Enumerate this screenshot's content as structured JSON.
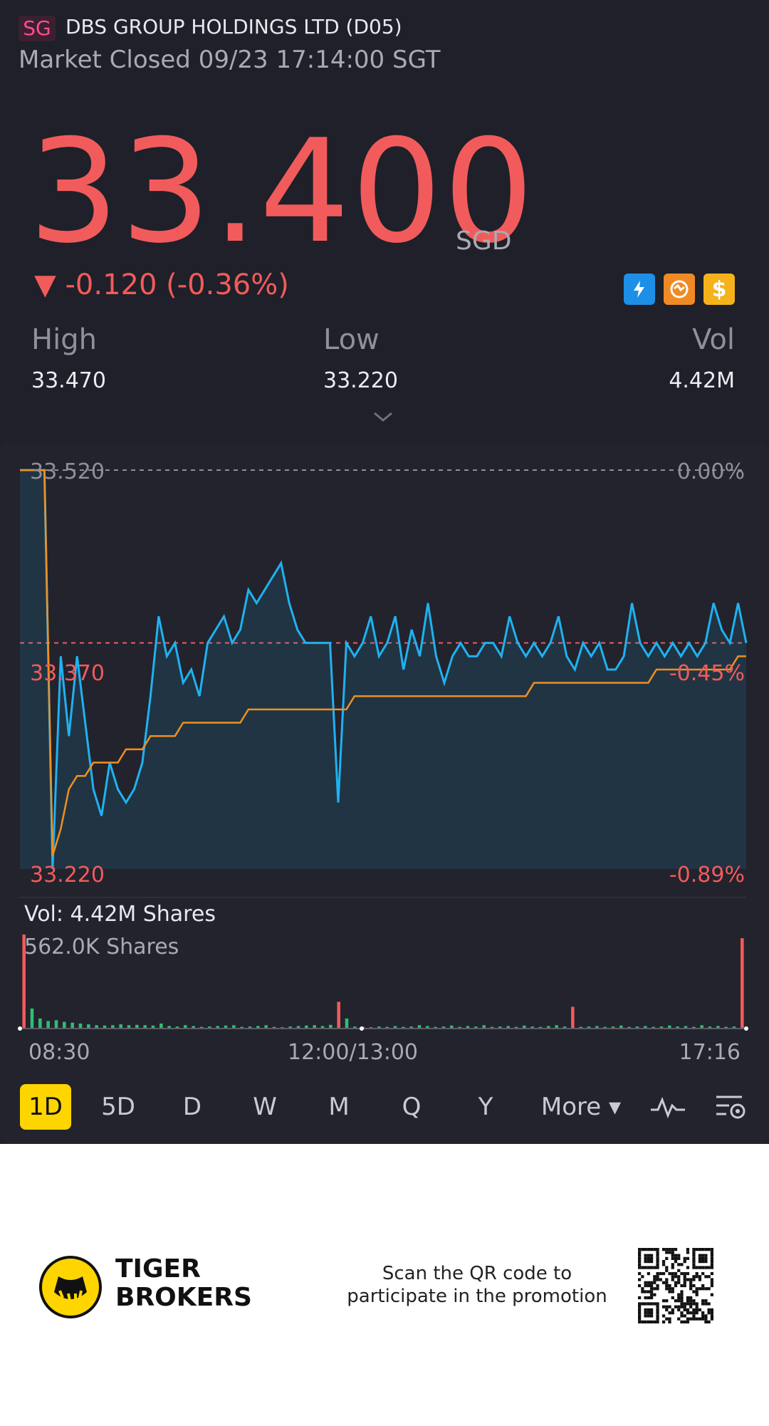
{
  "header": {
    "market_badge": "SG",
    "title": "DBS GROUP HOLDINGS LTD (D05)",
    "status": "Market Closed 09/23 17:14:00 SGT"
  },
  "quote": {
    "price": "33.400",
    "currency": "SGD",
    "change": "▼ -0.120 (-0.36%)",
    "change_color": "#f25b5b",
    "badges": [
      {
        "icon": "lightning-level1-icon",
        "color": "#1d8fe6"
      },
      {
        "icon": "swap-arrows-icon",
        "color": "#f08a24"
      },
      {
        "icon": "dollar-icon",
        "color": "#f5b21b"
      }
    ]
  },
  "stats": {
    "high_label": "High",
    "high_value": "33.470",
    "low_label": "Low",
    "low_value": "33.220",
    "vol_label": "Vol",
    "vol_value": "4.42M"
  },
  "chart": {
    "y_top_left": "33.520",
    "y_mid_left": "33.370",
    "y_bottom_left": "33.220",
    "y_top_right": "0.00%",
    "y_mid_right": "-0.45%",
    "y_bottom_right": "-0.89%",
    "volume_label": "Vol:   4.42M Shares",
    "volume_max": "562.0K Shares",
    "time_start": "08:30",
    "time_mid": "12:00/13:00",
    "time_end": "17:16"
  },
  "chart_data": {
    "type": "line",
    "ylim": [
      33.22,
      33.52
    ],
    "prev_close": 33.52,
    "series": [
      {
        "color": "#1fb2f1",
        "values": [
          33.52,
          33.52,
          33.52,
          33.52,
          33.22,
          33.38,
          33.32,
          33.38,
          33.33,
          33.28,
          33.26,
          33.3,
          33.28,
          33.27,
          33.28,
          33.3,
          33.35,
          33.41,
          33.38,
          33.39,
          33.36,
          33.37,
          33.35,
          33.39,
          33.4,
          33.41,
          33.39,
          33.4,
          33.43,
          33.42,
          33.43,
          33.44,
          33.45,
          33.42,
          33.4,
          33.39,
          33.39,
          33.39,
          33.39,
          33.27,
          33.39,
          33.38,
          33.39,
          33.41,
          33.38,
          33.39,
          33.41,
          33.37,
          33.4,
          33.38,
          33.42,
          33.38,
          33.36,
          33.38,
          33.39,
          33.38,
          33.38,
          33.39,
          33.39,
          33.38,
          33.41,
          33.39,
          33.38,
          33.39,
          33.38,
          33.39,
          33.41,
          33.38,
          33.37,
          33.39,
          33.38,
          33.39,
          33.37,
          33.37,
          33.38,
          33.42,
          33.39,
          33.38,
          33.39,
          33.38,
          33.39,
          33.38,
          33.39,
          33.38,
          33.39,
          33.42,
          33.4,
          33.39,
          33.42,
          33.39
        ]
      },
      {
        "color": "#f0901e",
        "values": [
          33.52,
          33.52,
          33.52,
          33.52,
          33.23,
          33.25,
          33.28,
          33.29,
          33.29,
          33.3,
          33.3,
          33.3,
          33.3,
          33.31,
          33.31,
          33.31,
          33.32,
          33.32,
          33.32,
          33.32,
          33.33,
          33.33,
          33.33,
          33.33,
          33.33,
          33.33,
          33.33,
          33.33,
          33.34,
          33.34,
          33.34,
          33.34,
          33.34,
          33.34,
          33.34,
          33.34,
          33.34,
          33.34,
          33.34,
          33.34,
          33.34,
          33.35,
          33.35,
          33.35,
          33.35,
          33.35,
          33.35,
          33.35,
          33.35,
          33.35,
          33.35,
          33.35,
          33.35,
          33.35,
          33.35,
          33.35,
          33.35,
          33.35,
          33.35,
          33.35,
          33.35,
          33.35,
          33.35,
          33.36,
          33.36,
          33.36,
          33.36,
          33.36,
          33.36,
          33.36,
          33.36,
          33.36,
          33.36,
          33.36,
          33.36,
          33.36,
          33.36,
          33.36,
          33.37,
          33.37,
          33.37,
          33.37,
          33.37,
          33.37,
          33.37,
          33.37,
          33.37,
          33.37,
          33.38,
          33.38
        ]
      }
    ],
    "volume": [
      562,
      120,
      60,
      45,
      50,
      40,
      35,
      30,
      25,
      20,
      18,
      20,
      25,
      20,
      22,
      20,
      18,
      30,
      15,
      12,
      20,
      15,
      10,
      12,
      15,
      18,
      20,
      10,
      12,
      15,
      20,
      10,
      8,
      12,
      15,
      18,
      20,
      15,
      22,
      160,
      60,
      12,
      10,
      8,
      12,
      10,
      15,
      10,
      12,
      20,
      15,
      10,
      12,
      18,
      10,
      15,
      12,
      20,
      10,
      12,
      15,
      10,
      18,
      12,
      10,
      15,
      20,
      12,
      130,
      10,
      12,
      15,
      10,
      12,
      18,
      10,
      12,
      15,
      10,
      12,
      18,
      12,
      15,
      10,
      20,
      12,
      15,
      10,
      12,
      540
    ],
    "volume_colors_up_index": [
      0,
      39,
      68,
      89
    ]
  },
  "timeframes": [
    "1D",
    "5D",
    "D",
    "W",
    "M",
    "Q",
    "Y",
    "More ▾"
  ],
  "active_timeframe": "1D",
  "promo": {
    "brand_line1": "TIGER",
    "brand_line2": "BROKERS",
    "text": "Scan the QR code to participate in the promotion"
  }
}
